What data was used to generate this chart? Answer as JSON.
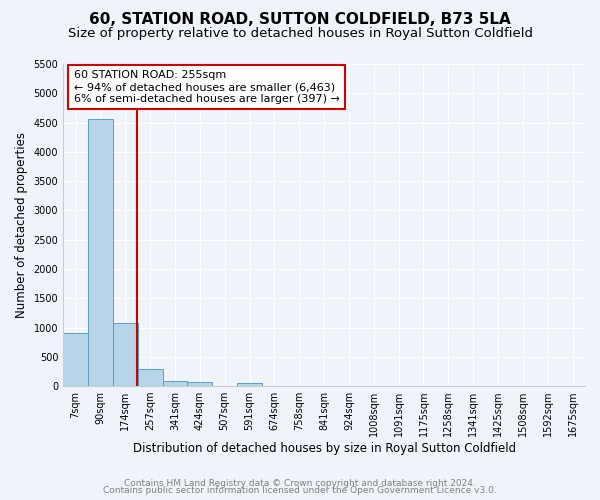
{
  "title": "60, STATION ROAD, SUTTON COLDFIELD, B73 5LA",
  "subtitle": "Size of property relative to detached houses in Royal Sutton Coldfield",
  "xlabel": "Distribution of detached houses by size in Royal Sutton Coldfield",
  "ylabel": "Number of detached properties",
  "bin_labels": [
    "7sqm",
    "90sqm",
    "174sqm",
    "257sqm",
    "341sqm",
    "424sqm",
    "507sqm",
    "591sqm",
    "674sqm",
    "758sqm",
    "841sqm",
    "924sqm",
    "1008sqm",
    "1091sqm",
    "1175sqm",
    "1258sqm",
    "1341sqm",
    "1425sqm",
    "1508sqm",
    "1592sqm",
    "1675sqm"
  ],
  "bar_heights": [
    900,
    4560,
    1075,
    300,
    90,
    75,
    0,
    50,
    0,
    0,
    0,
    0,
    0,
    0,
    0,
    0,
    0,
    0,
    0,
    0,
    0
  ],
  "bar_color": "#b8d4e8",
  "bar_edge_color": "#5a9ec9",
  "property_line_x": 2.47,
  "property_line_color": "#cc0000",
  "annotation_line1": "60 STATION ROAD: 255sqm",
  "annotation_line2": "← 94% of detached houses are smaller (6,463)",
  "annotation_line3": "6% of semi-detached houses are larger (397) →",
  "annotation_box_color": "#cc0000",
  "ylim": [
    0,
    5500
  ],
  "yticks": [
    0,
    500,
    1000,
    1500,
    2000,
    2500,
    3000,
    3500,
    4000,
    4500,
    5000,
    5500
  ],
  "footer_line1": "Contains HM Land Registry data © Crown copyright and database right 2024.",
  "footer_line2": "Contains public sector information licensed under the Open Government Licence v3.0.",
  "background_color": "#eef4fa",
  "plot_background_color": "#eef4fa",
  "title_fontsize": 11,
  "subtitle_fontsize": 9.5,
  "annotation_fontsize": 8.0,
  "xlabel_fontsize": 8.5,
  "ylabel_fontsize": 8.5,
  "footer_fontsize": 6.5
}
